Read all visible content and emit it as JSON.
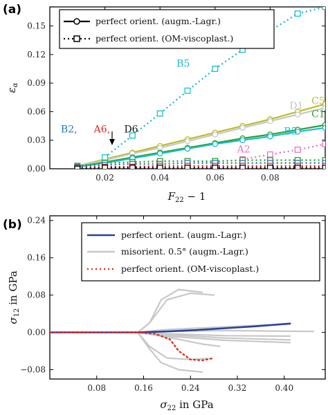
{
  "chart_data": [
    {
      "type": "line",
      "panel_label": "(a)",
      "xlabel": "F22 − 1",
      "ylabel": "εα",
      "xlim": [
        0,
        0.1
      ],
      "ylim": [
        0,
        0.17
      ],
      "x_ticks": [
        0.02,
        0.04,
        0.06,
        0.08
      ],
      "x_tick_labels": [
        "0.02",
        "0.04",
        "0.06",
        "0.08"
      ],
      "y_ticks": [
        0,
        0.03,
        0.06,
        0.09,
        0.12,
        0.15
      ],
      "y_tick_labels": [
        "0.00",
        "0.03",
        "0.06",
        "0.09",
        "0.12",
        "0.15"
      ],
      "legend": {
        "position": "top-right",
        "entries": [
          {
            "label": "perfect orient. (augm.-Lagr.)",
            "style": "solid-circle"
          },
          {
            "label": "perfect orient. (OM-viscoplast.)",
            "style": "dotted-square"
          }
        ]
      },
      "series": [
        {
          "name": "C5",
          "method": "augm.-Lagr.",
          "color": "#bcbd22",
          "x": [
            0.01,
            0.02,
            0.03,
            0.04,
            0.05,
            0.06,
            0.07,
            0.08,
            0.09,
            0.1
          ],
          "y": [
            0.003,
            0.01,
            0.017,
            0.024,
            0.031,
            0.038,
            0.045,
            0.052,
            0.06,
            0.068
          ]
        },
        {
          "name": "D1",
          "method": "augm.-Lagr.",
          "color": "#c7c7c7",
          "x": [
            0.01,
            0.02,
            0.03,
            0.04,
            0.05,
            0.06,
            0.07,
            0.08,
            0.09,
            0.1
          ],
          "y": [
            0.003,
            0.009,
            0.016,
            0.022,
            0.029,
            0.036,
            0.043,
            0.05,
            0.057,
            0.064
          ]
        },
        {
          "name": "C1",
          "method": "augm.-Lagr.",
          "color": "#2ca02c",
          "x": [
            0.01,
            0.02,
            0.03,
            0.04,
            0.05,
            0.06,
            0.07,
            0.08,
            0.09,
            0.1
          ],
          "y": [
            0.002,
            0.007,
            0.012,
            0.017,
            0.022,
            0.027,
            0.032,
            0.036,
            0.041,
            0.046
          ]
        },
        {
          "name": "B5",
          "method": "augm.-Lagr.",
          "color": "#17becf",
          "x": [
            0.01,
            0.02,
            0.03,
            0.04,
            0.05,
            0.06,
            0.07,
            0.08,
            0.09,
            0.1
          ],
          "y": [
            0.002,
            0.006,
            0.011,
            0.016,
            0.021,
            0.026,
            0.03,
            0.034,
            0.039,
            0.043
          ]
        },
        {
          "name": "B5",
          "method": "OM-viscoplast.",
          "color": "#17becf",
          "x": [
            0.02,
            0.03,
            0.04,
            0.05,
            0.06,
            0.07,
            0.08,
            0.09,
            0.1
          ],
          "y": [
            0.012,
            0.035,
            0.058,
            0.082,
            0.105,
            0.125,
            0.145,
            0.163,
            0.17
          ]
        },
        {
          "name": "A2",
          "method": "OM-viscoplast.",
          "color": "#e377c2",
          "x": [
            0.07,
            0.08,
            0.09,
            0.1
          ],
          "y": [
            0.01,
            0.015,
            0.02,
            0.026
          ]
        },
        {
          "name": "C1",
          "method": "OM-viscoplast.",
          "color": "#2ca02c",
          "x": [
            0.01,
            0.02,
            0.03,
            0.04,
            0.05,
            0.06,
            0.07,
            0.08,
            0.09,
            0.1
          ],
          "y": [
            0.003,
            0.006,
            0.007,
            0.008,
            0.008,
            0.008,
            0.009,
            0.009,
            0.009,
            0.009
          ]
        },
        {
          "name": "B2",
          "method": "OM-viscoplast.",
          "color": "#1f77b4",
          "x": [
            0.01,
            0.02,
            0.03,
            0.04,
            0.05,
            0.06,
            0.07,
            0.08,
            0.09,
            0.1
          ],
          "y": [
            0.002,
            0.004,
            0.005,
            0.005,
            0.006,
            0.006,
            0.006,
            0.006,
            0.006,
            0.006
          ]
        },
        {
          "name": "A6",
          "method": "OM-viscoplast.",
          "color": "#d62728",
          "x": [
            0.01,
            0.02,
            0.03,
            0.04,
            0.05,
            0.06,
            0.07,
            0.08,
            0.09,
            0.1
          ],
          "y": [
            0.001,
            0.002,
            0.002,
            0.003,
            0.003,
            0.003,
            0.003,
            0.003,
            0.003,
            0.003
          ]
        },
        {
          "name": "D6",
          "method": "OM-viscoplast.",
          "color": "#000000",
          "x": [
            0.01,
            0.02,
            0.03,
            0.04,
            0.05,
            0.06,
            0.07,
            0.08,
            0.09,
            0.1
          ],
          "y": [
            0.0,
            0.001,
            0.001,
            0.001,
            0.001,
            0.001,
            0.001,
            0.001,
            0.001,
            0.001
          ]
        }
      ],
      "annotations": [
        {
          "text": "B5",
          "color": "#17becf",
          "x": 0.046,
          "y": 0.107
        },
        {
          "text": "D1",
          "color": "#c7c7c7",
          "x": 0.087,
          "y": 0.063
        },
        {
          "text": "C5",
          "color": "#bcbd22",
          "x": 0.095,
          "y": 0.068
        },
        {
          "text": "C1",
          "color": "#2ca02c",
          "x": 0.095,
          "y": 0.054
        },
        {
          "text": "B5",
          "color": "#17becf",
          "x": 0.085,
          "y": 0.036
        },
        {
          "text": "A2",
          "color": "#e377c2",
          "x": 0.068,
          "y": 0.017
        },
        {
          "text": "B2,",
          "color": "#1f77b4",
          "x": 0.004,
          "y": 0.038
        },
        {
          "text": "A6,",
          "color": "#d62728",
          "x": 0.016,
          "y": 0.038
        },
        {
          "text": "D6",
          "color": "#111111",
          "x": 0.027,
          "y": 0.038
        }
      ]
    },
    {
      "type": "line",
      "panel_label": "(b)",
      "xlabel": "σ22 in GPa",
      "ylabel": "σ12 in GPa",
      "xlim": [
        0,
        0.47
      ],
      "ylim": [
        -0.1,
        0.25
      ],
      "x_ticks": [
        0.08,
        0.16,
        0.24,
        0.32,
        0.4
      ],
      "x_tick_labels": [
        "0.08",
        "0.16",
        "0.24",
        "0.32",
        "0.40"
      ],
      "y_ticks": [
        -0.08,
        0,
        0.08,
        0.16,
        0.24
      ],
      "y_tick_labels": [
        "−0.08",
        "0.00",
        "0.08",
        "0.16",
        "0.24"
      ],
      "legend": {
        "position": "top-right",
        "entries": [
          {
            "label": "perfect orient. (augm.-Lagr.)",
            "style": "solid",
            "color": "#2b3f9e"
          },
          {
            "label": "misorient. 0.5° (augm.-Lagr.)",
            "style": "solid",
            "color": "#c8c8c8"
          },
          {
            "label": "perfect orient. (OM-viscoplast.)",
            "style": "dotted",
            "color": "#e0321e"
          }
        ]
      },
      "series": [
        {
          "name": "misorient. 0.5° (augm.-Lagr.)",
          "color": "#c8c8c8",
          "x": [
            0.0,
            0.15,
            0.17,
            0.19,
            0.22,
            0.26
          ],
          "y": [
            0.0,
            0.0,
            0.02,
            0.07,
            0.092,
            0.086
          ]
        },
        {
          "name": "misorient. 0.5° (augm.-Lagr.)",
          "color": "#c8c8c8",
          "x": [
            0.15,
            0.17,
            0.2,
            0.24,
            0.28
          ],
          "y": [
            0.0,
            0.02,
            0.07,
            0.084,
            0.08
          ]
        },
        {
          "name": "misorient. 0.5° (augm.-Lagr.)",
          "color": "#c8c8c8",
          "x": [
            0.15,
            0.2,
            0.3,
            0.41
          ],
          "y": [
            0.0,
            0.006,
            0.012,
            0.018
          ]
        },
        {
          "name": "misorient. 0.5° (augm.-Lagr.)",
          "color": "#c8c8c8",
          "x": [
            0.15,
            0.2,
            0.3,
            0.45
          ],
          "y": [
            0.0,
            0.002,
            0.004,
            0.002
          ]
        },
        {
          "name": "misorient. 0.5° (augm.-Lagr.)",
          "color": "#c8c8c8",
          "x": [
            0.15,
            0.2,
            0.3,
            0.41
          ],
          "y": [
            0.0,
            -0.003,
            -0.007,
            -0.008
          ]
        },
        {
          "name": "misorient. 0.5° (augm.-Lagr.)",
          "color": "#c8c8c8",
          "x": [
            0.15,
            0.2,
            0.3,
            0.41
          ],
          "y": [
            0.0,
            -0.005,
            -0.012,
            -0.016
          ]
        },
        {
          "name": "misorient. 0.5° (augm.-Lagr.)",
          "color": "#c8c8c8",
          "x": [
            0.15,
            0.2,
            0.3,
            0.41
          ],
          "y": [
            0.0,
            -0.008,
            -0.017,
            -0.022
          ]
        },
        {
          "name": "misorient. 0.5° (augm.-Lagr.)",
          "color": "#c8c8c8",
          "x": [
            0.15,
            0.2,
            0.26,
            0.29
          ],
          "y": [
            0.0,
            -0.01,
            -0.025,
            -0.03
          ]
        },
        {
          "name": "misorient. 0.5° (augm.-Lagr.)",
          "color": "#c8c8c8",
          "x": [
            0.15,
            0.17,
            0.2,
            0.24,
            0.27
          ],
          "y": [
            0.0,
            -0.03,
            -0.055,
            -0.058,
            -0.056
          ]
        },
        {
          "name": "misorient. 0.5° (augm.-Lagr.)",
          "color": "#c8c8c8",
          "x": [
            0.15,
            0.17,
            0.19,
            0.22,
            0.26
          ],
          "y": [
            0.0,
            -0.035,
            -0.065,
            -0.08,
            -0.085
          ]
        },
        {
          "name": "perfect orient. (augm.-Lagr.)",
          "color": "#2b3f9e",
          "x": [
            0.0,
            0.15,
            0.2,
            0.25,
            0.3,
            0.35,
            0.41
          ],
          "y": [
            0.0,
            0.0,
            0.002,
            0.005,
            0.009,
            0.013,
            0.019
          ]
        },
        {
          "name": "perfect orient. (OM-viscoplast.)",
          "color": "#e0321e",
          "x": [
            0.0,
            0.15,
            0.18,
            0.205,
            0.22,
            0.24,
            0.26,
            0.28
          ],
          "y": [
            0.0,
            0.0,
            -0.003,
            -0.015,
            -0.04,
            -0.058,
            -0.06,
            -0.055
          ]
        }
      ]
    }
  ]
}
